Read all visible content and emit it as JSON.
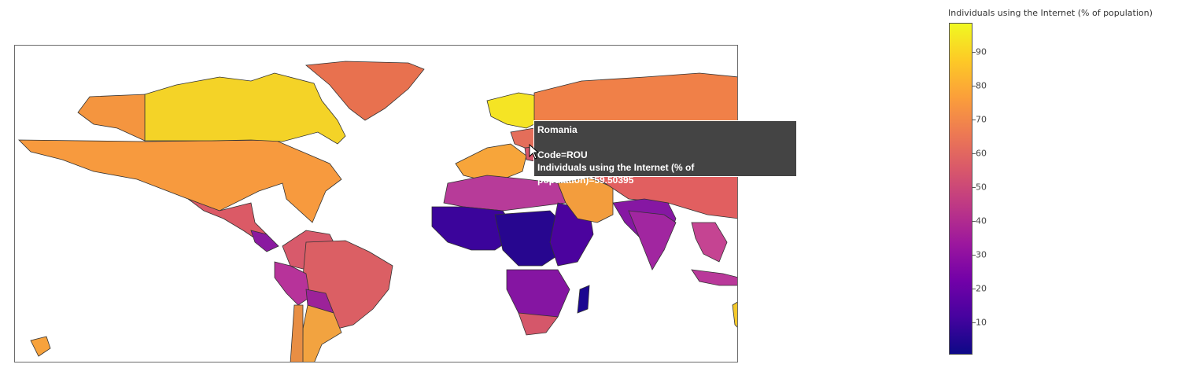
{
  "colorbar": {
    "title": "Individuals using the Internet (% of population)",
    "ticks": [
      "10",
      "20",
      "30",
      "40",
      "50",
      "60",
      "70",
      "80",
      "90"
    ],
    "tick_values": [
      10,
      20,
      30,
      40,
      50,
      60,
      70,
      80,
      90
    ],
    "range": [
      0.5,
      98.5
    ],
    "colors": [
      "#0d0887",
      "#46039f",
      "#7201a8",
      "#9c179e",
      "#bd3786",
      "#d8576b",
      "#ed7953",
      "#fb9f3a",
      "#fdca26",
      "#f0f921"
    ]
  },
  "tooltip": {
    "country": "Romania",
    "code_line": "Code=ROU",
    "value_line": "Individuals using the Internet (% of population)=59.50395"
  },
  "chart_data": {
    "type": "choropleth",
    "metric": "Individuals using the Internet (% of population)",
    "highlighted": {
      "country": "Romania",
      "code": "ROU",
      "value": 59.50395
    }
  }
}
